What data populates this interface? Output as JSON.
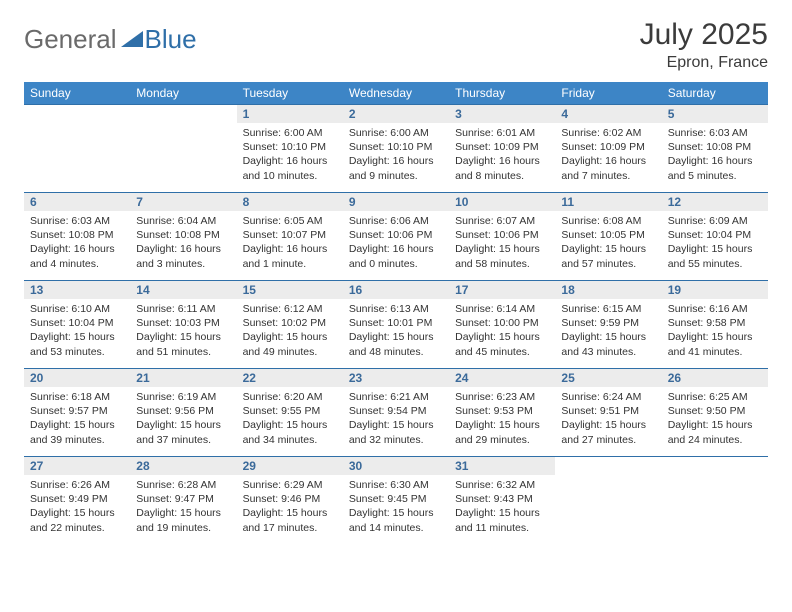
{
  "logo": {
    "text_gray": "General",
    "text_blue": "Blue"
  },
  "title": "July 2025",
  "location": "Epron, France",
  "colors": {
    "header_bg": "#3d85c6",
    "header_fg": "#ffffff",
    "daynum_bg": "#ececec",
    "daynum_fg": "#3b6a9a",
    "rule": "#2f6fa8",
    "text": "#333333",
    "logo_gray": "#6a6a6a",
    "logo_blue": "#2f6fa8"
  },
  "weekdays": [
    "Sunday",
    "Monday",
    "Tuesday",
    "Wednesday",
    "Thursday",
    "Friday",
    "Saturday"
  ],
  "weeks": [
    [
      {
        "empty": true
      },
      {
        "empty": true
      },
      {
        "day": "1",
        "sunrise": "6:00 AM",
        "sunset": "10:10 PM",
        "daylight": "16 hours and 10 minutes."
      },
      {
        "day": "2",
        "sunrise": "6:00 AM",
        "sunset": "10:10 PM",
        "daylight": "16 hours and 9 minutes."
      },
      {
        "day": "3",
        "sunrise": "6:01 AM",
        "sunset": "10:09 PM",
        "daylight": "16 hours and 8 minutes."
      },
      {
        "day": "4",
        "sunrise": "6:02 AM",
        "sunset": "10:09 PM",
        "daylight": "16 hours and 7 minutes."
      },
      {
        "day": "5",
        "sunrise": "6:03 AM",
        "sunset": "10:08 PM",
        "daylight": "16 hours and 5 minutes."
      }
    ],
    [
      {
        "day": "6",
        "sunrise": "6:03 AM",
        "sunset": "10:08 PM",
        "daylight": "16 hours and 4 minutes."
      },
      {
        "day": "7",
        "sunrise": "6:04 AM",
        "sunset": "10:08 PM",
        "daylight": "16 hours and 3 minutes."
      },
      {
        "day": "8",
        "sunrise": "6:05 AM",
        "sunset": "10:07 PM",
        "daylight": "16 hours and 1 minute."
      },
      {
        "day": "9",
        "sunrise": "6:06 AM",
        "sunset": "10:06 PM",
        "daylight": "16 hours and 0 minutes."
      },
      {
        "day": "10",
        "sunrise": "6:07 AM",
        "sunset": "10:06 PM",
        "daylight": "15 hours and 58 minutes."
      },
      {
        "day": "11",
        "sunrise": "6:08 AM",
        "sunset": "10:05 PM",
        "daylight": "15 hours and 57 minutes."
      },
      {
        "day": "12",
        "sunrise": "6:09 AM",
        "sunset": "10:04 PM",
        "daylight": "15 hours and 55 minutes."
      }
    ],
    [
      {
        "day": "13",
        "sunrise": "6:10 AM",
        "sunset": "10:04 PM",
        "daylight": "15 hours and 53 minutes."
      },
      {
        "day": "14",
        "sunrise": "6:11 AM",
        "sunset": "10:03 PM",
        "daylight": "15 hours and 51 minutes."
      },
      {
        "day": "15",
        "sunrise": "6:12 AM",
        "sunset": "10:02 PM",
        "daylight": "15 hours and 49 minutes."
      },
      {
        "day": "16",
        "sunrise": "6:13 AM",
        "sunset": "10:01 PM",
        "daylight": "15 hours and 48 minutes."
      },
      {
        "day": "17",
        "sunrise": "6:14 AM",
        "sunset": "10:00 PM",
        "daylight": "15 hours and 45 minutes."
      },
      {
        "day": "18",
        "sunrise": "6:15 AM",
        "sunset": "9:59 PM",
        "daylight": "15 hours and 43 minutes."
      },
      {
        "day": "19",
        "sunrise": "6:16 AM",
        "sunset": "9:58 PM",
        "daylight": "15 hours and 41 minutes."
      }
    ],
    [
      {
        "day": "20",
        "sunrise": "6:18 AM",
        "sunset": "9:57 PM",
        "daylight": "15 hours and 39 minutes."
      },
      {
        "day": "21",
        "sunrise": "6:19 AM",
        "sunset": "9:56 PM",
        "daylight": "15 hours and 37 minutes."
      },
      {
        "day": "22",
        "sunrise": "6:20 AM",
        "sunset": "9:55 PM",
        "daylight": "15 hours and 34 minutes."
      },
      {
        "day": "23",
        "sunrise": "6:21 AM",
        "sunset": "9:54 PM",
        "daylight": "15 hours and 32 minutes."
      },
      {
        "day": "24",
        "sunrise": "6:23 AM",
        "sunset": "9:53 PM",
        "daylight": "15 hours and 29 minutes."
      },
      {
        "day": "25",
        "sunrise": "6:24 AM",
        "sunset": "9:51 PM",
        "daylight": "15 hours and 27 minutes."
      },
      {
        "day": "26",
        "sunrise": "6:25 AM",
        "sunset": "9:50 PM",
        "daylight": "15 hours and 24 minutes."
      }
    ],
    [
      {
        "day": "27",
        "sunrise": "6:26 AM",
        "sunset": "9:49 PM",
        "daylight": "15 hours and 22 minutes."
      },
      {
        "day": "28",
        "sunrise": "6:28 AM",
        "sunset": "9:47 PM",
        "daylight": "15 hours and 19 minutes."
      },
      {
        "day": "29",
        "sunrise": "6:29 AM",
        "sunset": "9:46 PM",
        "daylight": "15 hours and 17 minutes."
      },
      {
        "day": "30",
        "sunrise": "6:30 AM",
        "sunset": "9:45 PM",
        "daylight": "15 hours and 14 minutes."
      },
      {
        "day": "31",
        "sunrise": "6:32 AM",
        "sunset": "9:43 PM",
        "daylight": "15 hours and 11 minutes."
      },
      {
        "empty": true
      },
      {
        "empty": true
      }
    ]
  ],
  "labels": {
    "sunrise_prefix": "Sunrise: ",
    "sunset_prefix": "Sunset: ",
    "daylight_prefix": "Daylight: "
  }
}
